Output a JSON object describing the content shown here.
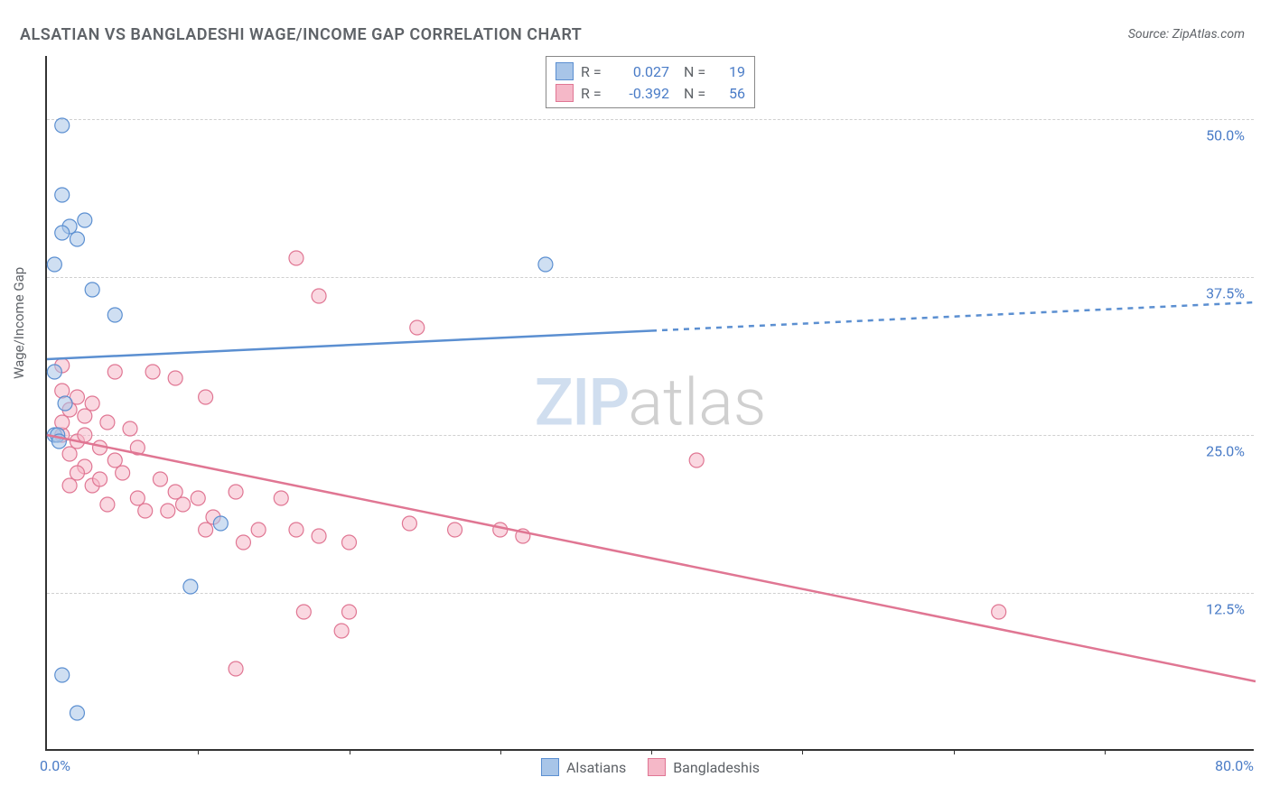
{
  "title": "ALSATIAN VS BANGLADESHI WAGE/INCOME GAP CORRELATION CHART",
  "source": "Source: ZipAtlas.com",
  "ylabel": "Wage/Income Gap",
  "watermark_zip": "ZIP",
  "watermark_atlas": "atlas",
  "chart": {
    "type": "scatter",
    "background_color": "#ffffff",
    "grid_color": "#d0d0d0",
    "axis_color": "#333333",
    "label_color": "#5f6368",
    "tick_label_color": "#4a7cc7",
    "xlim": [
      0,
      80
    ],
    "ylim": [
      0,
      55
    ],
    "y_gridlines": [
      12.5,
      25.0,
      37.5,
      50.0
    ],
    "y_tick_labels": [
      "12.5%",
      "25.0%",
      "37.5%",
      "50.0%"
    ],
    "x_tick_labels": {
      "left": "0.0%",
      "right": "80.0%"
    },
    "x_minor_ticks": [
      10,
      20,
      30,
      40,
      50,
      60,
      70
    ],
    "marker_radius": 8,
    "marker_opacity": 0.55,
    "line_width": 2.5,
    "title_fontsize": 18,
    "tick_fontsize": 16,
    "label_fontsize": 15
  },
  "legend_top": {
    "rows": [
      {
        "swatch_fill": "#a8c5e8",
        "swatch_stroke": "#5b8fd1",
        "r_label": "R =",
        "r_value": "0.027",
        "n_label": "N =",
        "n_value": "19"
      },
      {
        "swatch_fill": "#f5b8c8",
        "swatch_stroke": "#e07693",
        "r_label": "R =",
        "r_value": "-0.392",
        "n_label": "N =",
        "n_value": "56"
      }
    ]
  },
  "legend_bottom": {
    "items": [
      {
        "swatch_fill": "#a8c5e8",
        "swatch_stroke": "#5b8fd1",
        "label": "Alsatians"
      },
      {
        "swatch_fill": "#f5b8c8",
        "swatch_stroke": "#e07693",
        "label": "Bangladeshis"
      }
    ]
  },
  "series": {
    "alsatians": {
      "fill": "#a8c5e8",
      "stroke": "#5b8fd1",
      "points": [
        [
          1.0,
          49.5
        ],
        [
          1.0,
          44.0
        ],
        [
          1.5,
          41.5
        ],
        [
          2.5,
          42.0
        ],
        [
          1.0,
          41.0
        ],
        [
          0.5,
          38.5
        ],
        [
          3.0,
          36.5
        ],
        [
          4.5,
          34.5
        ],
        [
          33.0,
          38.5
        ],
        [
          0.5,
          30.0
        ],
        [
          0.5,
          25.0
        ],
        [
          0.7,
          25.0
        ],
        [
          11.5,
          18.0
        ],
        [
          9.5,
          13.0
        ],
        [
          1.0,
          6.0
        ],
        [
          2.0,
          3.0
        ],
        [
          1.2,
          27.5
        ],
        [
          2.0,
          40.5
        ],
        [
          0.8,
          24.5
        ]
      ],
      "regression": {
        "x1": 0,
        "y1": 31.0,
        "x2": 80,
        "y2": 35.5,
        "solid_until_x": 40
      }
    },
    "bangladeshis": {
      "fill": "#f5b8c8",
      "stroke": "#e07693",
      "points": [
        [
          16.5,
          39.0
        ],
        [
          18.0,
          36.0
        ],
        [
          24.5,
          33.5
        ],
        [
          1.0,
          30.5
        ],
        [
          4.5,
          30.0
        ],
        [
          7.0,
          30.0
        ],
        [
          8.5,
          29.5
        ],
        [
          1.0,
          28.5
        ],
        [
          2.0,
          28.0
        ],
        [
          10.5,
          28.0
        ],
        [
          3.0,
          27.5
        ],
        [
          1.5,
          27.0
        ],
        [
          2.5,
          26.5
        ],
        [
          4.0,
          26.0
        ],
        [
          5.5,
          25.5
        ],
        [
          1.0,
          25.0
        ],
        [
          2.0,
          24.5
        ],
        [
          3.5,
          24.0
        ],
        [
          6.0,
          24.0
        ],
        [
          1.5,
          23.5
        ],
        [
          4.5,
          23.0
        ],
        [
          2.5,
          22.5
        ],
        [
          5.0,
          22.0
        ],
        [
          7.5,
          21.5
        ],
        [
          1.5,
          21.0
        ],
        [
          3.0,
          21.0
        ],
        [
          8.5,
          20.5
        ],
        [
          10.0,
          20.0
        ],
        [
          12.5,
          20.5
        ],
        [
          15.5,
          20.0
        ],
        [
          43.0,
          23.0
        ],
        [
          6.5,
          19.0
        ],
        [
          4.0,
          19.5
        ],
        [
          9.0,
          19.5
        ],
        [
          11.0,
          18.5
        ],
        [
          14.0,
          17.5
        ],
        [
          16.5,
          17.5
        ],
        [
          18.0,
          17.0
        ],
        [
          13.0,
          16.5
        ],
        [
          20.0,
          16.5
        ],
        [
          24.0,
          18.0
        ],
        [
          27.0,
          17.5
        ],
        [
          30.0,
          17.5
        ],
        [
          31.5,
          17.0
        ],
        [
          17.0,
          11.0
        ],
        [
          20.0,
          11.0
        ],
        [
          19.5,
          9.5
        ],
        [
          12.5,
          6.5
        ],
        [
          63.0,
          11.0
        ],
        [
          2.0,
          22.0
        ],
        [
          3.5,
          21.5
        ],
        [
          6.0,
          20.0
        ],
        [
          8.0,
          19.0
        ],
        [
          10.5,
          17.5
        ],
        [
          1.0,
          26.0
        ],
        [
          2.5,
          25.0
        ]
      ],
      "regression": {
        "x1": 0,
        "y1": 25.0,
        "x2": 80,
        "y2": 5.5,
        "solid_until_x": 80
      }
    }
  }
}
